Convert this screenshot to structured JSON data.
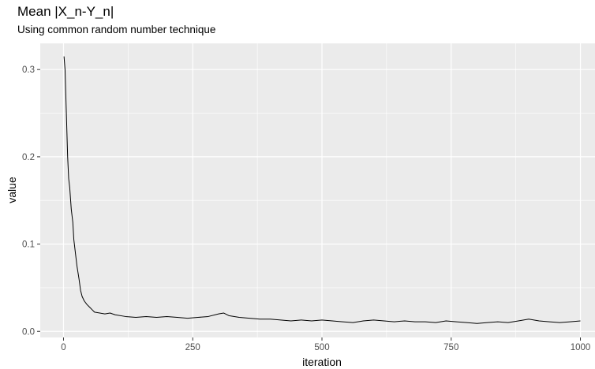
{
  "chart_data": {
    "type": "line",
    "title": "Mean |X_n-Y_n|",
    "subtitle": "Using common random number technique",
    "xlabel": "iteration",
    "ylabel": "value",
    "xlim": [
      -45,
      1045
    ],
    "ylim": [
      -0.007,
      0.33
    ],
    "x_ticks": [
      0,
      250,
      500,
      750,
      1000
    ],
    "x_tick_labels": [
      "0",
      "250",
      "500",
      "750",
      "1000"
    ],
    "y_ticks": [
      0.0,
      0.1,
      0.2,
      0.3
    ],
    "y_tick_labels": [
      "0.0",
      "0.1",
      "0.2",
      "0.3"
    ],
    "grid": true,
    "legend": "none",
    "colors": {
      "panel_background": "#ebebeb",
      "grid_major": "#ffffff",
      "line": "#000000"
    },
    "series": [
      {
        "x": [
          1,
          3,
          5,
          8,
          10,
          12,
          15,
          18,
          20,
          23,
          26,
          30,
          33,
          36,
          40,
          45,
          50,
          55,
          60,
          70,
          80,
          90,
          100,
          120,
          140,
          160,
          180,
          200,
          220,
          240,
          260,
          280,
          300,
          310,
          320,
          340,
          360,
          380,
          400,
          420,
          440,
          460,
          480,
          500,
          520,
          540,
          560,
          580,
          600,
          620,
          640,
          660,
          680,
          700,
          720,
          740,
          760,
          780,
          800,
          820,
          840,
          860,
          880,
          900,
          920,
          940,
          960,
          980,
          1000
        ],
        "y": [
          0.315,
          0.3,
          0.26,
          0.2,
          0.175,
          0.165,
          0.14,
          0.125,
          0.105,
          0.09,
          0.075,
          0.06,
          0.047,
          0.04,
          0.035,
          0.031,
          0.028,
          0.025,
          0.022,
          0.021,
          0.02,
          0.021,
          0.019,
          0.017,
          0.016,
          0.017,
          0.016,
          0.017,
          0.016,
          0.015,
          0.016,
          0.017,
          0.02,
          0.021,
          0.018,
          0.016,
          0.015,
          0.014,
          0.014,
          0.013,
          0.012,
          0.013,
          0.012,
          0.013,
          0.012,
          0.011,
          0.01,
          0.012,
          0.013,
          0.012,
          0.011,
          0.012,
          0.011,
          0.011,
          0.01,
          0.012,
          0.011,
          0.01,
          0.009,
          0.01,
          0.011,
          0.01,
          0.012,
          0.014,
          0.012,
          0.011,
          0.01,
          0.011,
          0.012
        ]
      }
    ]
  }
}
